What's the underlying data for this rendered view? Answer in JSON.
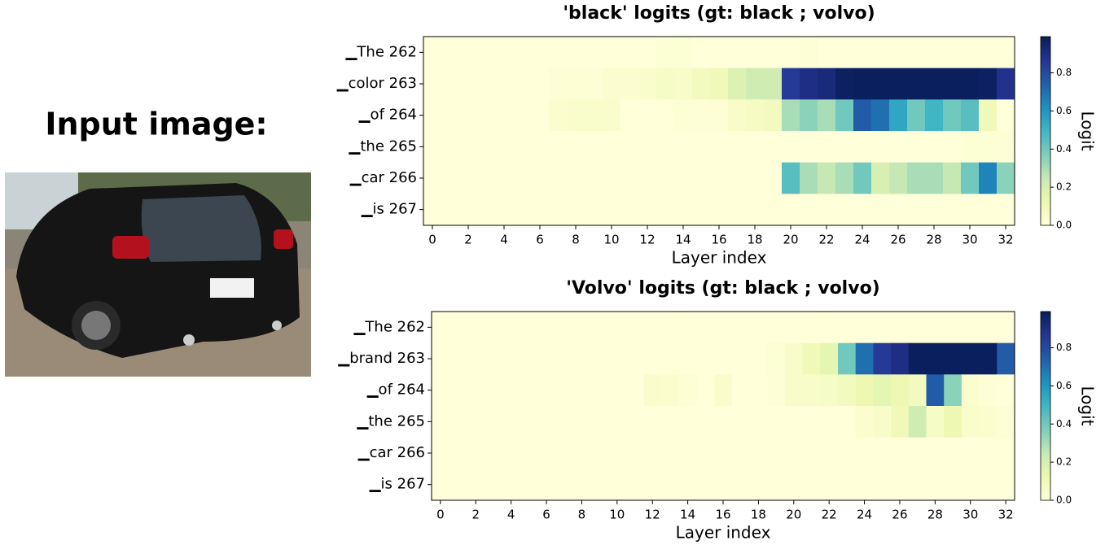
{
  "image_label": "Input image:",
  "chart_data": [
    {
      "type": "heatmap",
      "title": "'black' logits  (gt: black ; volvo)",
      "rows": [
        "▁The 262",
        "▁color 263",
        "▁of 264",
        "▁the 265",
        "▁car 266",
        "▁is 267"
      ],
      "x": [
        0,
        1,
        2,
        3,
        4,
        5,
        6,
        7,
        8,
        9,
        10,
        11,
        12,
        13,
        14,
        15,
        16,
        17,
        18,
        19,
        20,
        21,
        22,
        23,
        24,
        25,
        26,
        27,
        28,
        29,
        30,
        31,
        32
      ],
      "xlim": [
        -0.5,
        32.5
      ],
      "xticks": [
        0,
        2,
        4,
        6,
        8,
        10,
        12,
        14,
        16,
        18,
        20,
        22,
        24,
        26,
        28,
        30,
        32
      ],
      "xlabel": "Layer index",
      "colormap": "YlGnBu",
      "values": [
        [
          0,
          0,
          0,
          0,
          0,
          0,
          0,
          0,
          0,
          0,
          0,
          0,
          0,
          0.02,
          0.02,
          0,
          0,
          0,
          0,
          0,
          0,
          0.01,
          0,
          0,
          0,
          0,
          0,
          0,
          0,
          0,
          0,
          0,
          0
        ],
        [
          0,
          0,
          0,
          0,
          0,
          0,
          0,
          0.01,
          0.02,
          0.01,
          0.03,
          0.03,
          0.04,
          0.06,
          0.05,
          0.08,
          0.1,
          0.18,
          0.22,
          0.22,
          0.85,
          0.9,
          0.92,
          0.97,
          0.98,
          0.98,
          0.98,
          0.98,
          0.98,
          0.98,
          0.98,
          0.97,
          0.88
        ],
        [
          0,
          0,
          0,
          0,
          0,
          0,
          0,
          0.03,
          0.04,
          0.04,
          0.04,
          0,
          0,
          0,
          0.02,
          0.01,
          0.01,
          0.05,
          0.07,
          0.08,
          0.3,
          0.35,
          0.3,
          0.4,
          0.75,
          0.7,
          0.55,
          0.4,
          0.5,
          0.4,
          0.45,
          0.1,
          0
        ],
        [
          0,
          0,
          0,
          0,
          0,
          0,
          0,
          0,
          0,
          0,
          0,
          0,
          0,
          0,
          0,
          0,
          0,
          0,
          0,
          0,
          0,
          0,
          0,
          0,
          0,
          0,
          0,
          0,
          0,
          0,
          0.02,
          0.02,
          0.01
        ],
        [
          0,
          0,
          0,
          0,
          0,
          0,
          0,
          0,
          0,
          0,
          0,
          0,
          0,
          0,
          0,
          0,
          0,
          0,
          0,
          0,
          0.45,
          0.3,
          0.25,
          0.3,
          0.4,
          0.2,
          0.25,
          0.3,
          0.3,
          0.25,
          0.4,
          0.65,
          0.35
        ],
        [
          0,
          0,
          0,
          0,
          0,
          0,
          0,
          0,
          0,
          0,
          0,
          0,
          0,
          0,
          0,
          0,
          0,
          0,
          0,
          0,
          0,
          0,
          0,
          0,
          0,
          0,
          0,
          0,
          0,
          0,
          0,
          0,
          0
        ]
      ],
      "colorbar": {
        "label": "Logit",
        "lim": [
          0,
          0.99
        ],
        "ticks": [
          {
            "value": 0,
            "label": "0.0"
          },
          0.2,
          0.4,
          0.6,
          0.8
        ]
      }
    },
    {
      "type": "heatmap",
      "title": "'Volvo' logits  (gt: black ; volvo)",
      "rows": [
        "▁The 262",
        "▁brand 263",
        "▁of 264",
        "▁the 265",
        "▁car 266",
        "▁is 267"
      ],
      "x": [
        0,
        1,
        2,
        3,
        4,
        5,
        6,
        7,
        8,
        9,
        10,
        11,
        12,
        13,
        14,
        15,
        16,
        17,
        18,
        19,
        20,
        21,
        22,
        23,
        24,
        25,
        26,
        27,
        28,
        29,
        30,
        31,
        32
      ],
      "xlim": [
        -0.5,
        32.5
      ],
      "xticks": [
        0,
        2,
        4,
        6,
        8,
        10,
        12,
        14,
        16,
        18,
        20,
        22,
        24,
        26,
        28,
        30,
        32
      ],
      "xlabel": "Layer index",
      "colormap": "YlGnBu",
      "values": [
        [
          0,
          0,
          0,
          0,
          0,
          0,
          0,
          0,
          0,
          0,
          0,
          0,
          0,
          0,
          0,
          0,
          0,
          0,
          0,
          0,
          0,
          0,
          0,
          0,
          0,
          0,
          0,
          0,
          0,
          0,
          0,
          0,
          0
        ],
        [
          0,
          0,
          0,
          0,
          0,
          0,
          0,
          0,
          0,
          0,
          0,
          0,
          0,
          0,
          0,
          0,
          0,
          0,
          0,
          0.02,
          0.05,
          0.1,
          0.15,
          0.4,
          0.7,
          0.85,
          0.9,
          0.98,
          0.98,
          0.98,
          0.98,
          0.98,
          0.75
        ],
        [
          0,
          0,
          0,
          0,
          0,
          0,
          0,
          0,
          0,
          0,
          0,
          0,
          0.04,
          0.03,
          0.02,
          0,
          0.04,
          0,
          0,
          0.01,
          0.05,
          0.05,
          0.06,
          0.08,
          0.12,
          0.15,
          0.12,
          0.08,
          0.75,
          0.35,
          0.03,
          0.01,
          0
        ],
        [
          0,
          0,
          0,
          0,
          0,
          0,
          0,
          0,
          0,
          0,
          0,
          0,
          0,
          0,
          0,
          0,
          0,
          0,
          0,
          0,
          0,
          0,
          0,
          0,
          0.03,
          0.05,
          0.1,
          0.22,
          0.06,
          0.12,
          0.04,
          0.03,
          0.01
        ],
        [
          0,
          0,
          0,
          0,
          0,
          0,
          0,
          0,
          0,
          0,
          0,
          0,
          0,
          0,
          0,
          0,
          0,
          0,
          0,
          0,
          0,
          0,
          0,
          0,
          0,
          0,
          0,
          0,
          0,
          0,
          0,
          0,
          0
        ],
        [
          0,
          0,
          0,
          0,
          0,
          0,
          0,
          0,
          0,
          0,
          0,
          0,
          0,
          0,
          0,
          0,
          0,
          0,
          0,
          0,
          0,
          0,
          0,
          0,
          0,
          0,
          0,
          0,
          0,
          0,
          0,
          0,
          0
        ]
      ],
      "colorbar": {
        "label": "Logit",
        "lim": [
          0,
          0.99
        ],
        "ticks": [
          {
            "value": 0,
            "label": "0.0"
          },
          0.2,
          0.4,
          0.6,
          0.8
        ]
      }
    }
  ]
}
